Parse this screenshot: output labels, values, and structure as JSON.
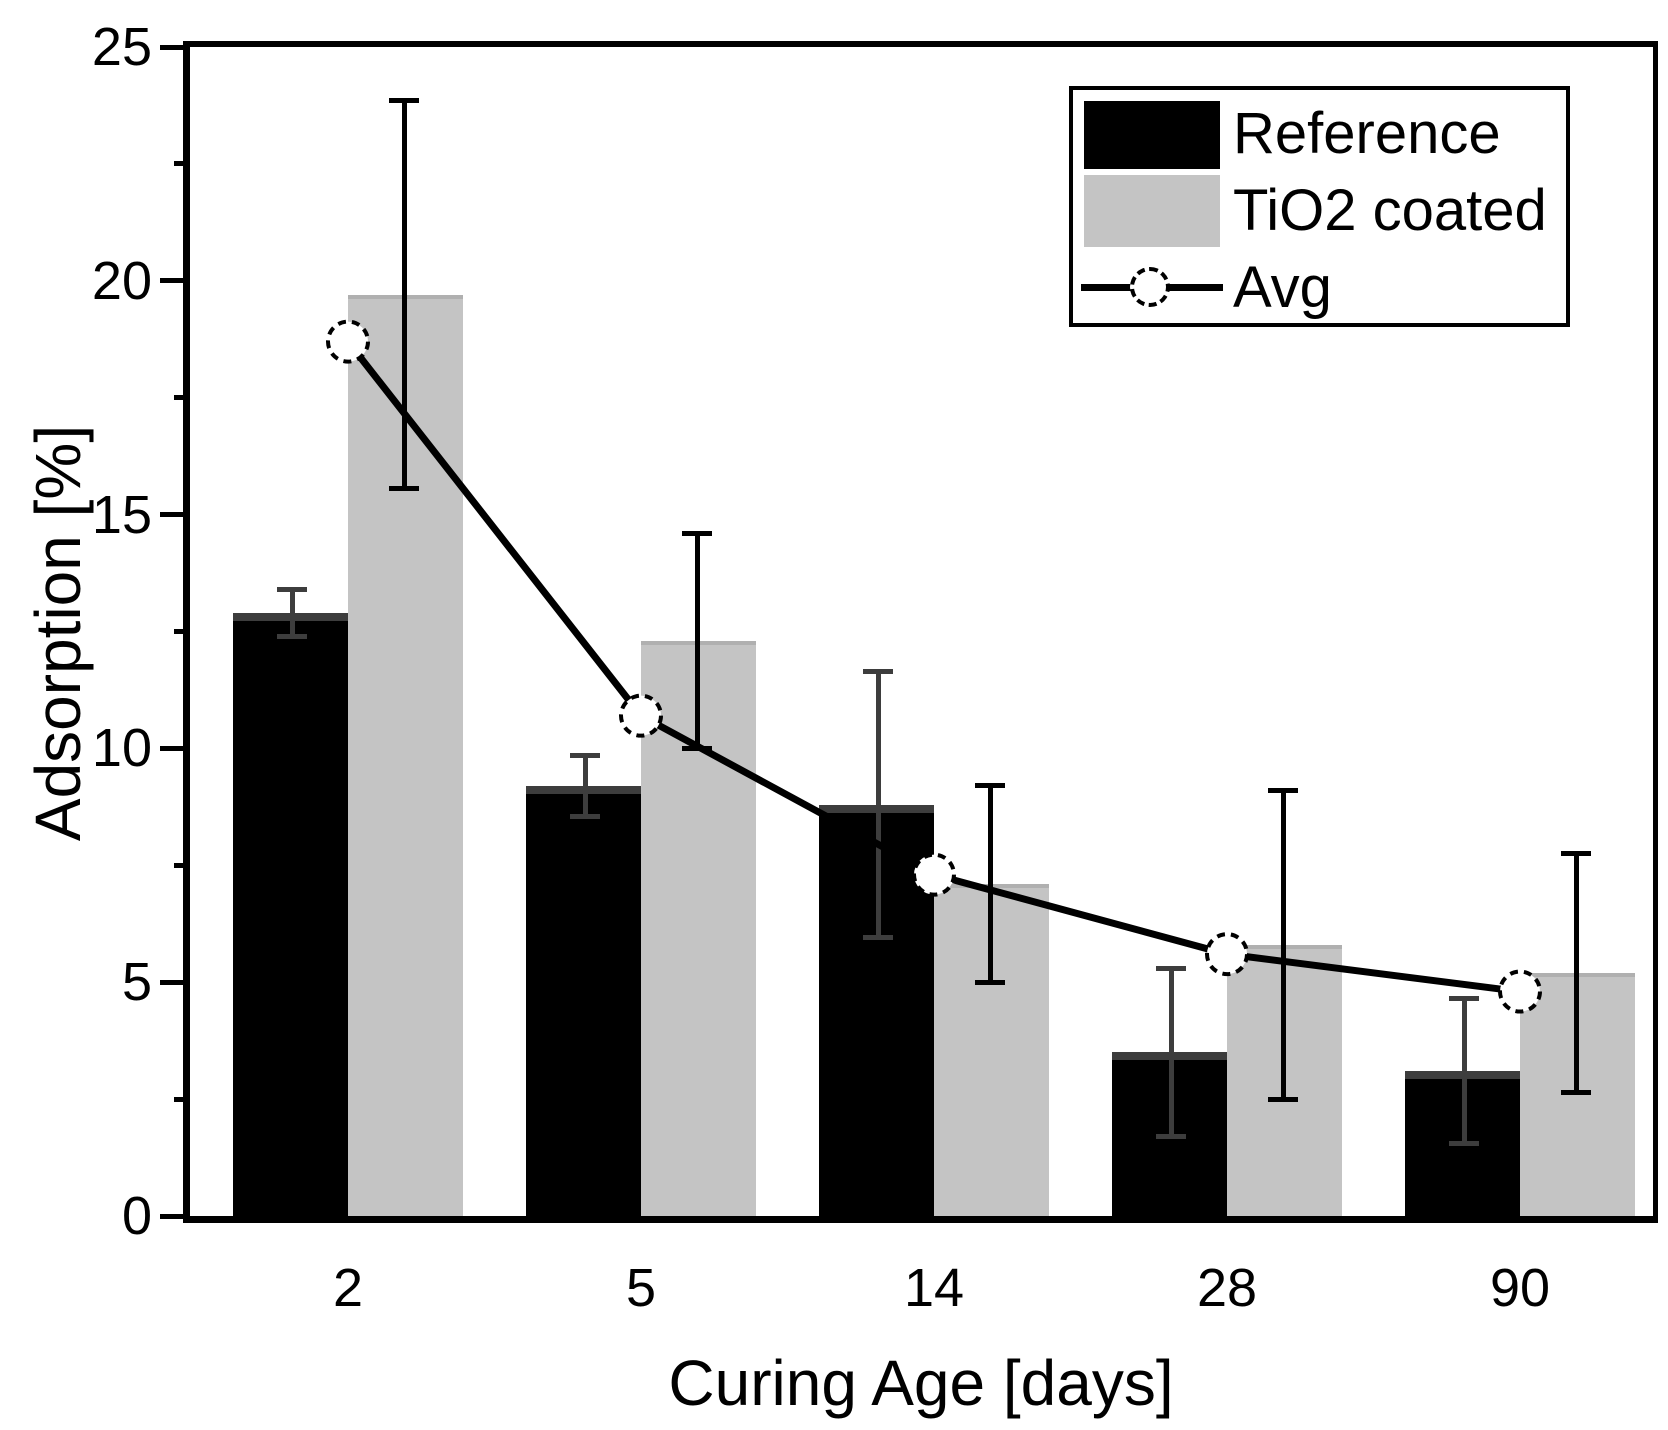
{
  "figure": {
    "background": "#ffffff",
    "text_color": "#000000"
  },
  "chart_data": {
    "type": "bar",
    "title": "",
    "xlabel": "Curing Age [days]",
    "ylabel": "Adsorption [%]",
    "categories": [
      "2",
      "5",
      "14",
      "28",
      "90"
    ],
    "series": [
      {
        "name": "Reference",
        "type": "bar",
        "color": "#000000",
        "values": [
          12.9,
          9.2,
          8.8,
          3.5,
          3.1
        ],
        "error_plus": [
          0.5,
          0.65,
          2.85,
          1.8,
          1.55
        ],
        "error_minus": [
          0.5,
          0.65,
          2.85,
          1.8,
          1.55
        ],
        "error_color": "#3d3d3d"
      },
      {
        "name": "TiO2 coated",
        "type": "bar",
        "color": "#c4c4c4",
        "values": [
          19.7,
          12.3,
          7.1,
          5.8,
          5.2
        ],
        "error_plus": [
          4.15,
          2.3,
          2.1,
          3.3,
          2.55
        ],
        "error_minus": [
          4.15,
          2.3,
          2.1,
          3.3,
          2.55
        ],
        "error_color": "#000000"
      },
      {
        "name": "Avg",
        "type": "line",
        "color": "#000000",
        "marker": "open-circle-dashed",
        "values": [
          18.7,
          10.7,
          7.3,
          5.6,
          4.8
        ]
      }
    ],
    "ylim": [
      0,
      25
    ],
    "yticks_major": [
      25,
      20,
      15,
      10,
      5,
      0
    ],
    "yticks_minor": [
      22.5,
      17.5,
      12.5,
      7.5,
      2.5
    ],
    "grid": false,
    "legend_position": "top-right"
  }
}
